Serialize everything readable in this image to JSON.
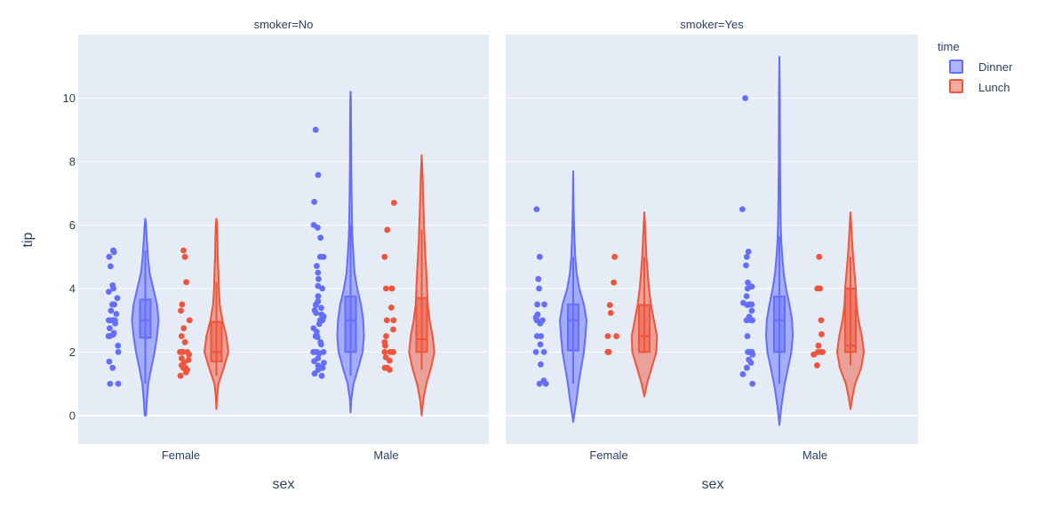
{
  "colors": {
    "dinner": "#636efa",
    "lunch": "#ef553b",
    "panel_bg": "#e5ecf6",
    "text": "#2a3f5f"
  },
  "legend": {
    "title": "time",
    "items": [
      {
        "label": "Dinner",
        "color": "#636efa"
      },
      {
        "label": "Lunch",
        "color": "#ef553b"
      }
    ]
  },
  "chart_data": {
    "type": "violin",
    "xlabel": "sex",
    "ylabel": "tip",
    "ylim": [
      -0.9,
      12.0
    ],
    "yticks": [
      0,
      2,
      4,
      6,
      8,
      10
    ],
    "categories": [
      "Female",
      "Male"
    ],
    "series_names": [
      "Dinner",
      "Lunch"
    ],
    "panels": [
      {
        "title": "smoker=No",
        "groups": [
          {
            "sex": "Female",
            "series": "Dinner",
            "kde": [
              [
                0,
                0.05
              ],
              [
                0.5,
                0.12
              ],
              [
                1,
                0.22
              ],
              [
                1.5,
                0.45
              ],
              [
                2,
                0.7
              ],
              [
                2.5,
                0.88
              ],
              [
                3,
                1.0
              ],
              [
                3.5,
                0.88
              ],
              [
                4,
                0.6
              ],
              [
                4.5,
                0.32
              ],
              [
                5,
                0.2
              ],
              [
                5.5,
                0.12
              ],
              [
                6,
                0.05
              ],
              [
                6.2,
                0
              ]
            ],
            "min": 1.0,
            "q1": 2.45,
            "median": 3.0,
            "q3": 3.65,
            "max": 5.2,
            "points": [
              5.2,
              5.15,
              5.0,
              4.7,
              4.1,
              4.0,
              3.9,
              3.7,
              3.5,
              3.5,
              3.3,
              3.2,
              3.0,
              3.0,
              3.0,
              3.0,
              2.9,
              2.75,
              2.6,
              2.55,
              2.5,
              2.5,
              2.2,
              2.0,
              1.7,
              1.5,
              1.0,
              1.0
            ]
          },
          {
            "sex": "Female",
            "series": "Lunch",
            "kde": [
              [
                0.2,
                0
              ],
              [
                0.6,
                0.05
              ],
              [
                1,
                0.15
              ],
              [
                1.5,
                0.55
              ],
              [
                2,
                0.9
              ],
              [
                2.5,
                0.75
              ],
              [
                3,
                0.45
              ],
              [
                3.5,
                0.25
              ],
              [
                4,
                0.18
              ],
              [
                4.5,
                0.15
              ],
              [
                5,
                0.1
              ],
              [
                5.5,
                0.08
              ],
              [
                6,
                0.05
              ],
              [
                6.2,
                0
              ]
            ],
            "min": 1.25,
            "q1": 1.7,
            "median": 2.0,
            "q3": 2.95,
            "max": 4.2,
            "points": [
              5.2,
              5.0,
              4.2,
              3.5,
              3.3,
              3.0,
              2.75,
              2.5,
              2.31,
              2.0,
              2.0,
              2.0,
              2.0,
              2.0,
              2.0,
              1.92,
              1.8,
              1.75,
              1.68,
              1.58,
              1.5,
              1.5,
              1.44,
              1.36,
              1.25
            ]
          },
          {
            "sex": "Male",
            "series": "Dinner",
            "kde": [
              [
                0.1,
                0
              ],
              [
                0.5,
                0.05
              ],
              [
                1,
                0.22
              ],
              [
                1.5,
                0.58
              ],
              [
                2,
                0.9
              ],
              [
                2.5,
                1.0
              ],
              [
                3,
                0.95
              ],
              [
                3.5,
                0.78
              ],
              [
                4,
                0.5
              ],
              [
                4.5,
                0.3
              ],
              [
                5,
                0.22
              ],
              [
                5.5,
                0.15
              ],
              [
                6,
                0.11
              ],
              [
                7,
                0.07
              ],
              [
                8,
                0.05
              ],
              [
                9,
                0.04
              ],
              [
                10,
                0.02
              ],
              [
                10.2,
                0
              ]
            ],
            "min": 1.25,
            "q1": 2.0,
            "median": 3.0,
            "q3": 3.75,
            "max": 6.0,
            "points": [
              9.0,
              7.58,
              6.73,
              6.0,
              5.92,
              5.6,
              5.0,
              5.0,
              4.71,
              4.5,
              4.3,
              4.08,
              4.0,
              3.76,
              3.6,
              3.5,
              3.48,
              3.39,
              3.31,
              3.23,
              3.18,
              3.15,
              3.12,
              3.08,
              3.0,
              3.0,
              3.0,
              2.88,
              2.75,
              2.64,
              2.5,
              2.5,
              2.47,
              2.31,
              2.24,
              2.0,
              2.0,
              2.0,
              2.0,
              1.96,
              1.8,
              1.71,
              1.66,
              1.57,
              1.5,
              1.5,
              1.44,
              1.32,
              1.25
            ]
          },
          {
            "sex": "Male",
            "series": "Lunch",
            "kde": [
              [
                0,
                0
              ],
              [
                0.5,
                0.12
              ],
              [
                1,
                0.35
              ],
              [
                1.5,
                0.7
              ],
              [
                2,
                0.95
              ],
              [
                2.5,
                0.82
              ],
              [
                3,
                0.6
              ],
              [
                3.5,
                0.45
              ],
              [
                4,
                0.4
              ],
              [
                4.5,
                0.35
              ],
              [
                5,
                0.28
              ],
              [
                5.5,
                0.22
              ],
              [
                6,
                0.18
              ],
              [
                6.5,
                0.14
              ],
              [
                7,
                0.1
              ],
              [
                7.5,
                0.07
              ],
              [
                8.2,
                0
              ]
            ],
            "min": 1.44,
            "q1": 2.0,
            "median": 2.4,
            "q3": 3.7,
            "max": 5.85,
            "points": [
              6.7,
              5.85,
              5.0,
              4.0,
              4.0,
              4.0,
              3.4,
              3.0,
              3.0,
              2.71,
              2.5,
              2.31,
              2.2,
              2.0,
              2.0,
              2.0,
              2.0,
              1.83,
              1.73,
              1.5,
              1.5,
              1.44
            ]
          }
        ]
      },
      {
        "title": "smoker=Yes",
        "groups": [
          {
            "sex": "Female",
            "series": "Dinner",
            "kde": [
              [
                -0.2,
                0
              ],
              [
                0.5,
                0.25
              ],
              [
                1,
                0.4
              ],
              [
                1.5,
                0.6
              ],
              [
                2,
                0.8
              ],
              [
                2.5,
                0.92
              ],
              [
                3,
                1.0
              ],
              [
                3.5,
                0.8
              ],
              [
                4,
                0.45
              ],
              [
                4.5,
                0.25
              ],
              [
                5,
                0.15
              ],
              [
                5.5,
                0.1
              ],
              [
                6,
                0.06
              ],
              [
                6.5,
                0.03
              ],
              [
                7,
                0.02
              ],
              [
                7.7,
                0
              ]
            ],
            "min": 1.0,
            "q1": 2.05,
            "median": 3.0,
            "q3": 3.5,
            "max": 5.0,
            "points": [
              6.5,
              5.0,
              4.3,
              4.0,
              3.5,
              3.5,
              3.18,
              3.09,
              3.0,
              3.0,
              2.9,
              2.5,
              2.5,
              2.24,
              2.0,
              2.0,
              1.61,
              1.1,
              1.0,
              1.0
            ]
          },
          {
            "sex": "Female",
            "series": "Lunch",
            "kde": [
              [
                0.6,
                0
              ],
              [
                1,
                0.2
              ],
              [
                1.5,
                0.55
              ],
              [
                2,
                0.9
              ],
              [
                2.5,
                0.95
              ],
              [
                3,
                0.72
              ],
              [
                3.5,
                0.5
              ],
              [
                4,
                0.35
              ],
              [
                4.5,
                0.25
              ],
              [
                5,
                0.16
              ],
              [
                5.5,
                0.1
              ],
              [
                6,
                0.05
              ],
              [
                6.4,
                0
              ]
            ],
            "min": 2.0,
            "q1": 2.0,
            "median": 2.5,
            "q3": 3.48,
            "max": 5.0,
            "points": [
              5.0,
              4.19,
              3.48,
              3.23,
              2.5,
              2.5,
              2.0,
              2.0,
              2.0
            ]
          },
          {
            "sex": "Male",
            "series": "Dinner",
            "kde": [
              [
                -0.3,
                0
              ],
              [
                0.3,
                0.15
              ],
              [
                1,
                0.4
              ],
              [
                1.5,
                0.65
              ],
              [
                2,
                0.9
              ],
              [
                2.5,
                1.0
              ],
              [
                3,
                0.95
              ],
              [
                3.5,
                0.75
              ],
              [
                4,
                0.5
              ],
              [
                4.5,
                0.32
              ],
              [
                5,
                0.22
              ],
              [
                5.5,
                0.14
              ],
              [
                6,
                0.1
              ],
              [
                7,
                0.07
              ],
              [
                8,
                0.05
              ],
              [
                9,
                0.04
              ],
              [
                10,
                0.03
              ],
              [
                11.3,
                0
              ]
            ],
            "min": 1.0,
            "q1": 2.0,
            "median": 3.0,
            "q3": 3.75,
            "max": 5.65,
            "points": [
              10.0,
              6.5,
              5.16,
              5.0,
              4.73,
              4.19,
              4.06,
              4.0,
              3.76,
              3.55,
              3.5,
              3.5,
              3.48,
              3.3,
              3.11,
              3.0,
              3.0,
              3.0,
              3.0,
              2.5,
              2.0,
              2.0,
              2.0,
              2.0,
              1.92,
              1.76,
              1.66,
              1.5,
              1.3,
              1.0
            ]
          },
          {
            "sex": "Male",
            "series": "Lunch",
            "kde": [
              [
                0.2,
                0
              ],
              [
                0.6,
                0.15
              ],
              [
                1,
                0.35
              ],
              [
                1.5,
                0.8
              ],
              [
                2,
                1.0
              ],
              [
                2.5,
                0.85
              ],
              [
                3,
                0.6
              ],
              [
                3.5,
                0.45
              ],
              [
                4,
                0.4
              ],
              [
                4.5,
                0.3
              ],
              [
                5,
                0.2
              ],
              [
                5.5,
                0.12
              ],
              [
                6,
                0.06
              ],
              [
                6.4,
                0
              ]
            ],
            "min": 1.58,
            "q1": 2.0,
            "median": 2.2,
            "q3": 4.0,
            "max": 5.0,
            "points": [
              5.0,
              4.0,
              4.0,
              3.0,
              2.56,
              2.2,
              2.0,
              2.0,
              2.0,
              1.92,
              1.58
            ]
          }
        ]
      }
    ]
  }
}
